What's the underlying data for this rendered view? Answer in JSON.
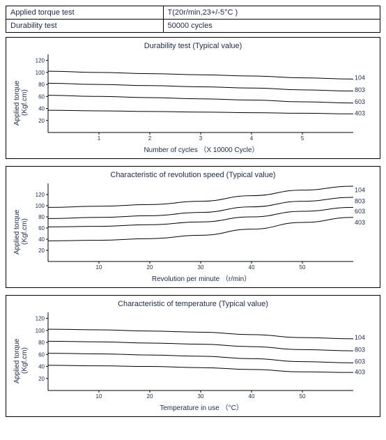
{
  "colors": {
    "text": "#1a2a4a",
    "line": "#000000",
    "border": "#000000",
    "tick": "#000000",
    "background": "#ffffff"
  },
  "spec_table": {
    "rows": [
      {
        "label": "Applied torque test",
        "value": "T(20r/min,23+/-5°C )"
      },
      {
        "label": "Durability test",
        "value": "50000 cycles"
      }
    ]
  },
  "charts": [
    {
      "id": "durability",
      "title": "Durability test  (Typical value)",
      "ylabel": "Applied torque\n(Kgf.cm)",
      "xlabel": "Number of cycles （X 10000 Cycle）",
      "ylim": [
        0,
        130
      ],
      "ytick_step": 20,
      "ytick_max": 120,
      "xlim": [
        0,
        6
      ],
      "xticks": [
        1,
        2,
        3,
        4,
        5
      ],
      "line_color": "#000000",
      "line_width": 1,
      "label_font_size": 9,
      "tick_font_size": 8,
      "series": [
        {
          "name": "104",
          "data": [
            [
              0,
              102
            ],
            [
              1,
              100
            ],
            [
              2,
              98
            ],
            [
              3,
              96
            ],
            [
              4,
              94
            ],
            [
              5,
              91
            ],
            [
              6,
              89
            ]
          ]
        },
        {
          "name": "803",
          "data": [
            [
              0,
              82
            ],
            [
              1,
              80
            ],
            [
              2,
              78
            ],
            [
              3,
              76
            ],
            [
              4,
              74
            ],
            [
              5,
              71
            ],
            [
              6,
              69
            ]
          ]
        },
        {
          "name": "603",
          "data": [
            [
              0,
              62
            ],
            [
              1,
              60
            ],
            [
              2,
              58
            ],
            [
              3,
              56
            ],
            [
              4,
              54
            ],
            [
              5,
              51
            ],
            [
              6,
              49
            ]
          ]
        },
        {
          "name": "403",
          "data": [
            [
              0,
              37
            ],
            [
              1,
              36
            ],
            [
              2,
              35
            ],
            [
              3,
              34
            ],
            [
              4,
              33
            ],
            [
              5,
              32
            ],
            [
              6,
              31
            ]
          ]
        }
      ]
    },
    {
      "id": "revolution",
      "title": "Characteristic of revolution speed  (Typical value)",
      "ylabel": "Applied torque\n(Kgf.cm)",
      "xlabel": "Revolution per minute （r/min）",
      "ylim": [
        0,
        140
      ],
      "ytick_step": 20,
      "ytick_max": 120,
      "xlim": [
        0,
        60
      ],
      "xticks": [
        10,
        20,
        30,
        40,
        50
      ],
      "line_color": "#000000",
      "line_width": 1,
      "label_font_size": 9,
      "tick_font_size": 8,
      "series": [
        {
          "name": "104",
          "data": [
            [
              0,
              97
            ],
            [
              10,
              99
            ],
            [
              20,
              102
            ],
            [
              30,
              108
            ],
            [
              40,
              118
            ],
            [
              50,
              128
            ],
            [
              60,
              135
            ]
          ]
        },
        {
          "name": "803",
          "data": [
            [
              0,
              77
            ],
            [
              10,
              79
            ],
            [
              20,
              82
            ],
            [
              30,
              88
            ],
            [
              40,
              98
            ],
            [
              50,
              108
            ],
            [
              60,
              115
            ]
          ]
        },
        {
          "name": "603",
          "data": [
            [
              0,
              62
            ],
            [
              10,
              63
            ],
            [
              20,
              66
            ],
            [
              30,
              71
            ],
            [
              40,
              80
            ],
            [
              50,
              90
            ],
            [
              60,
              97
            ]
          ]
        },
        {
          "name": "403",
          "data": [
            [
              0,
              37
            ],
            [
              10,
              38
            ],
            [
              20,
              41
            ],
            [
              30,
              47
            ],
            [
              40,
              58
            ],
            [
              50,
              70
            ],
            [
              60,
              79
            ]
          ]
        }
      ]
    },
    {
      "id": "temperature",
      "title": "Characteristic of temperature  (Typical value)",
      "ylabel": "Applied torque\n(Kgf.cm)",
      "xlabel": "Temperature in use （°C）",
      "ylim": [
        0,
        130
      ],
      "ytick_step": 20,
      "ytick_max": 120,
      "xlim": [
        0,
        60
      ],
      "xticks": [
        10,
        20,
        30,
        40,
        50
      ],
      "line_color": "#000000",
      "line_width": 1,
      "label_font_size": 9,
      "tick_font_size": 8,
      "series": [
        {
          "name": "104",
          "data": [
            [
              0,
              102
            ],
            [
              10,
              101
            ],
            [
              20,
              99
            ],
            [
              30,
              97
            ],
            [
              40,
              93
            ],
            [
              50,
              88
            ],
            [
              60,
              86
            ]
          ]
        },
        {
          "name": "803",
          "data": [
            [
              0,
              82
            ],
            [
              10,
              81
            ],
            [
              20,
              79
            ],
            [
              30,
              77
            ],
            [
              40,
              73
            ],
            [
              50,
              68
            ],
            [
              60,
              66
            ]
          ]
        },
        {
          "name": "603",
          "data": [
            [
              0,
              62
            ],
            [
              10,
              61
            ],
            [
              20,
              59
            ],
            [
              30,
              57
            ],
            [
              40,
              53
            ],
            [
              50,
              48
            ],
            [
              60,
              46
            ]
          ]
        },
        {
          "name": "403",
          "data": [
            [
              0,
              42
            ],
            [
              10,
              41
            ],
            [
              20,
              40
            ],
            [
              30,
              38
            ],
            [
              40,
              35
            ],
            [
              50,
              31
            ],
            [
              60,
              30
            ]
          ]
        }
      ]
    }
  ]
}
